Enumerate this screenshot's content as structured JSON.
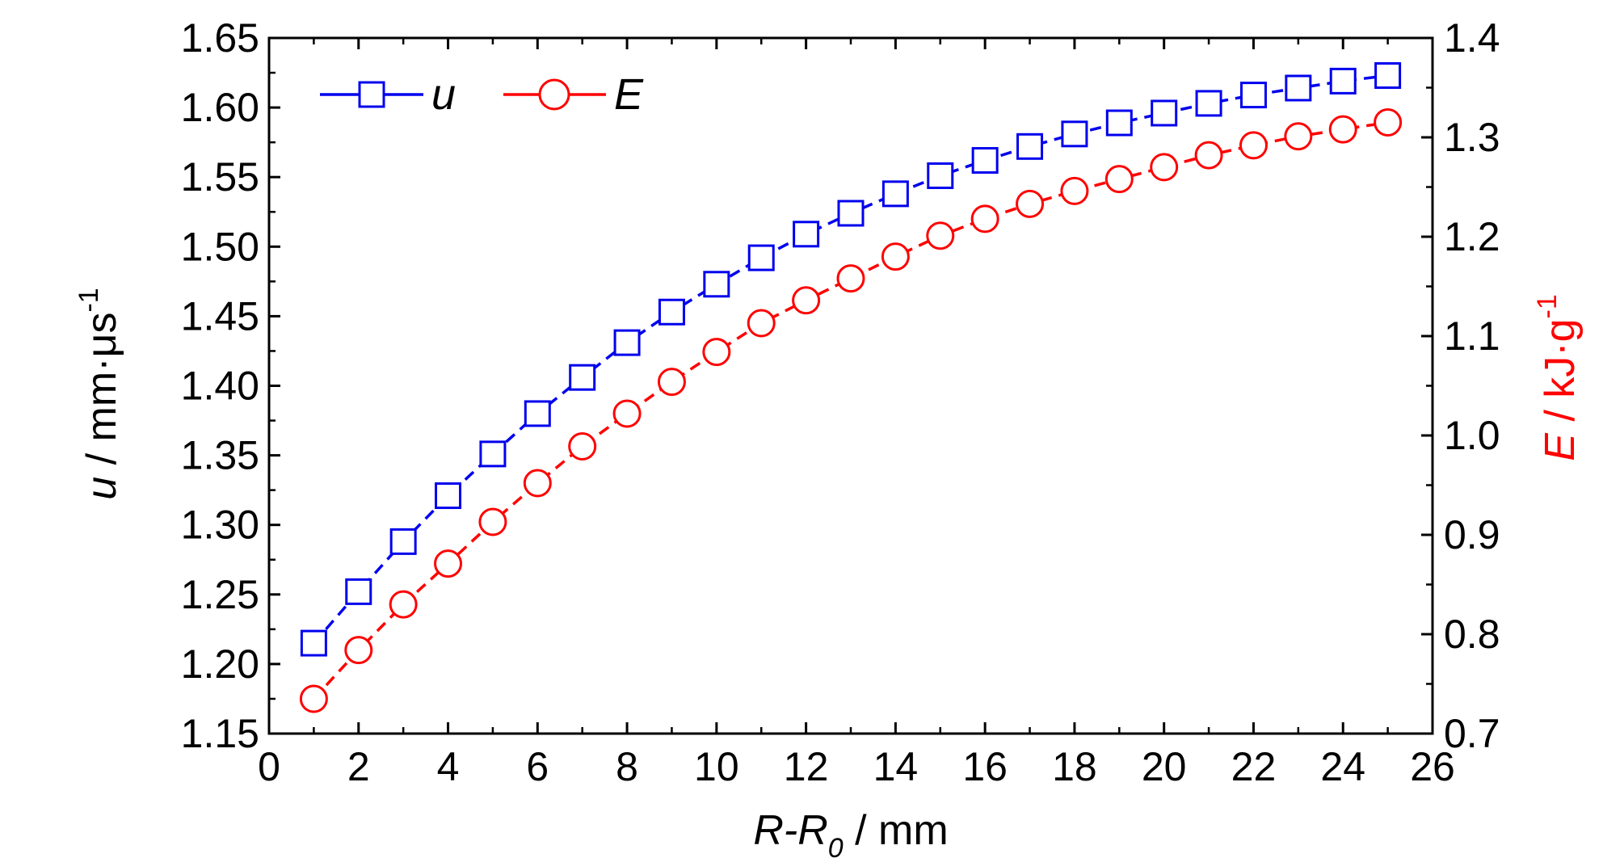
{
  "chart_data": {
    "type": "line",
    "x_label": {
      "main": "R-R",
      "subscript": "0",
      "unit": " / mm"
    },
    "y_left_label": {
      "var": "u",
      "unit": " / mm·μs",
      "sup": "-1"
    },
    "y_right_label": {
      "var": "E",
      "unit": " / kJ·g",
      "sup": "-1"
    },
    "xlim": [
      0,
      26
    ],
    "x_ticks": [
      0,
      2,
      4,
      6,
      8,
      10,
      12,
      14,
      16,
      18,
      20,
      22,
      24,
      26
    ],
    "y_left_lim": [
      1.15,
      1.65
    ],
    "y_left_ticks": [
      "1.15",
      "1.20",
      "1.25",
      "1.30",
      "1.35",
      "1.40",
      "1.45",
      "1.50",
      "1.55",
      "1.60",
      "1.65"
    ],
    "y_right_lim": [
      0.7,
      1.4
    ],
    "y_right_ticks": [
      "0.7",
      "0.8",
      "0.9",
      "1.0",
      "1.1",
      "1.2",
      "1.3",
      "1.4"
    ],
    "legend_position": "top-left",
    "series": [
      {
        "name": "u",
        "axis": "left",
        "color": "#0000ee",
        "marker": "square",
        "x": [
          1,
          2,
          3,
          4,
          5,
          6,
          7,
          8,
          9,
          10,
          11,
          12,
          13,
          14,
          15,
          16,
          17,
          18,
          19,
          20,
          21,
          22,
          23,
          24,
          25
        ],
        "y": [
          1.215,
          1.252,
          1.288,
          1.321,
          1.351,
          1.38,
          1.406,
          1.431,
          1.453,
          1.473,
          1.492,
          1.509,
          1.524,
          1.538,
          1.551,
          1.562,
          1.572,
          1.581,
          1.589,
          1.596,
          1.603,
          1.609,
          1.614,
          1.619,
          1.623
        ]
      },
      {
        "name": "E",
        "axis": "right",
        "color": "#ff0000",
        "marker": "circle",
        "x": [
          1,
          2,
          3,
          4,
          5,
          6,
          7,
          8,
          9,
          10,
          11,
          12,
          13,
          14,
          15,
          16,
          17,
          18,
          19,
          20,
          21,
          22,
          23,
          24,
          25
        ],
        "y": [
          0.735,
          0.784,
          0.83,
          0.871,
          0.913,
          0.952,
          0.989,
          1.022,
          1.054,
          1.084,
          1.113,
          1.136,
          1.158,
          1.18,
          1.201,
          1.218,
          1.233,
          1.246,
          1.258,
          1.27,
          1.282,
          1.292,
          1.301,
          1.308,
          1.315
        ]
      }
    ]
  }
}
